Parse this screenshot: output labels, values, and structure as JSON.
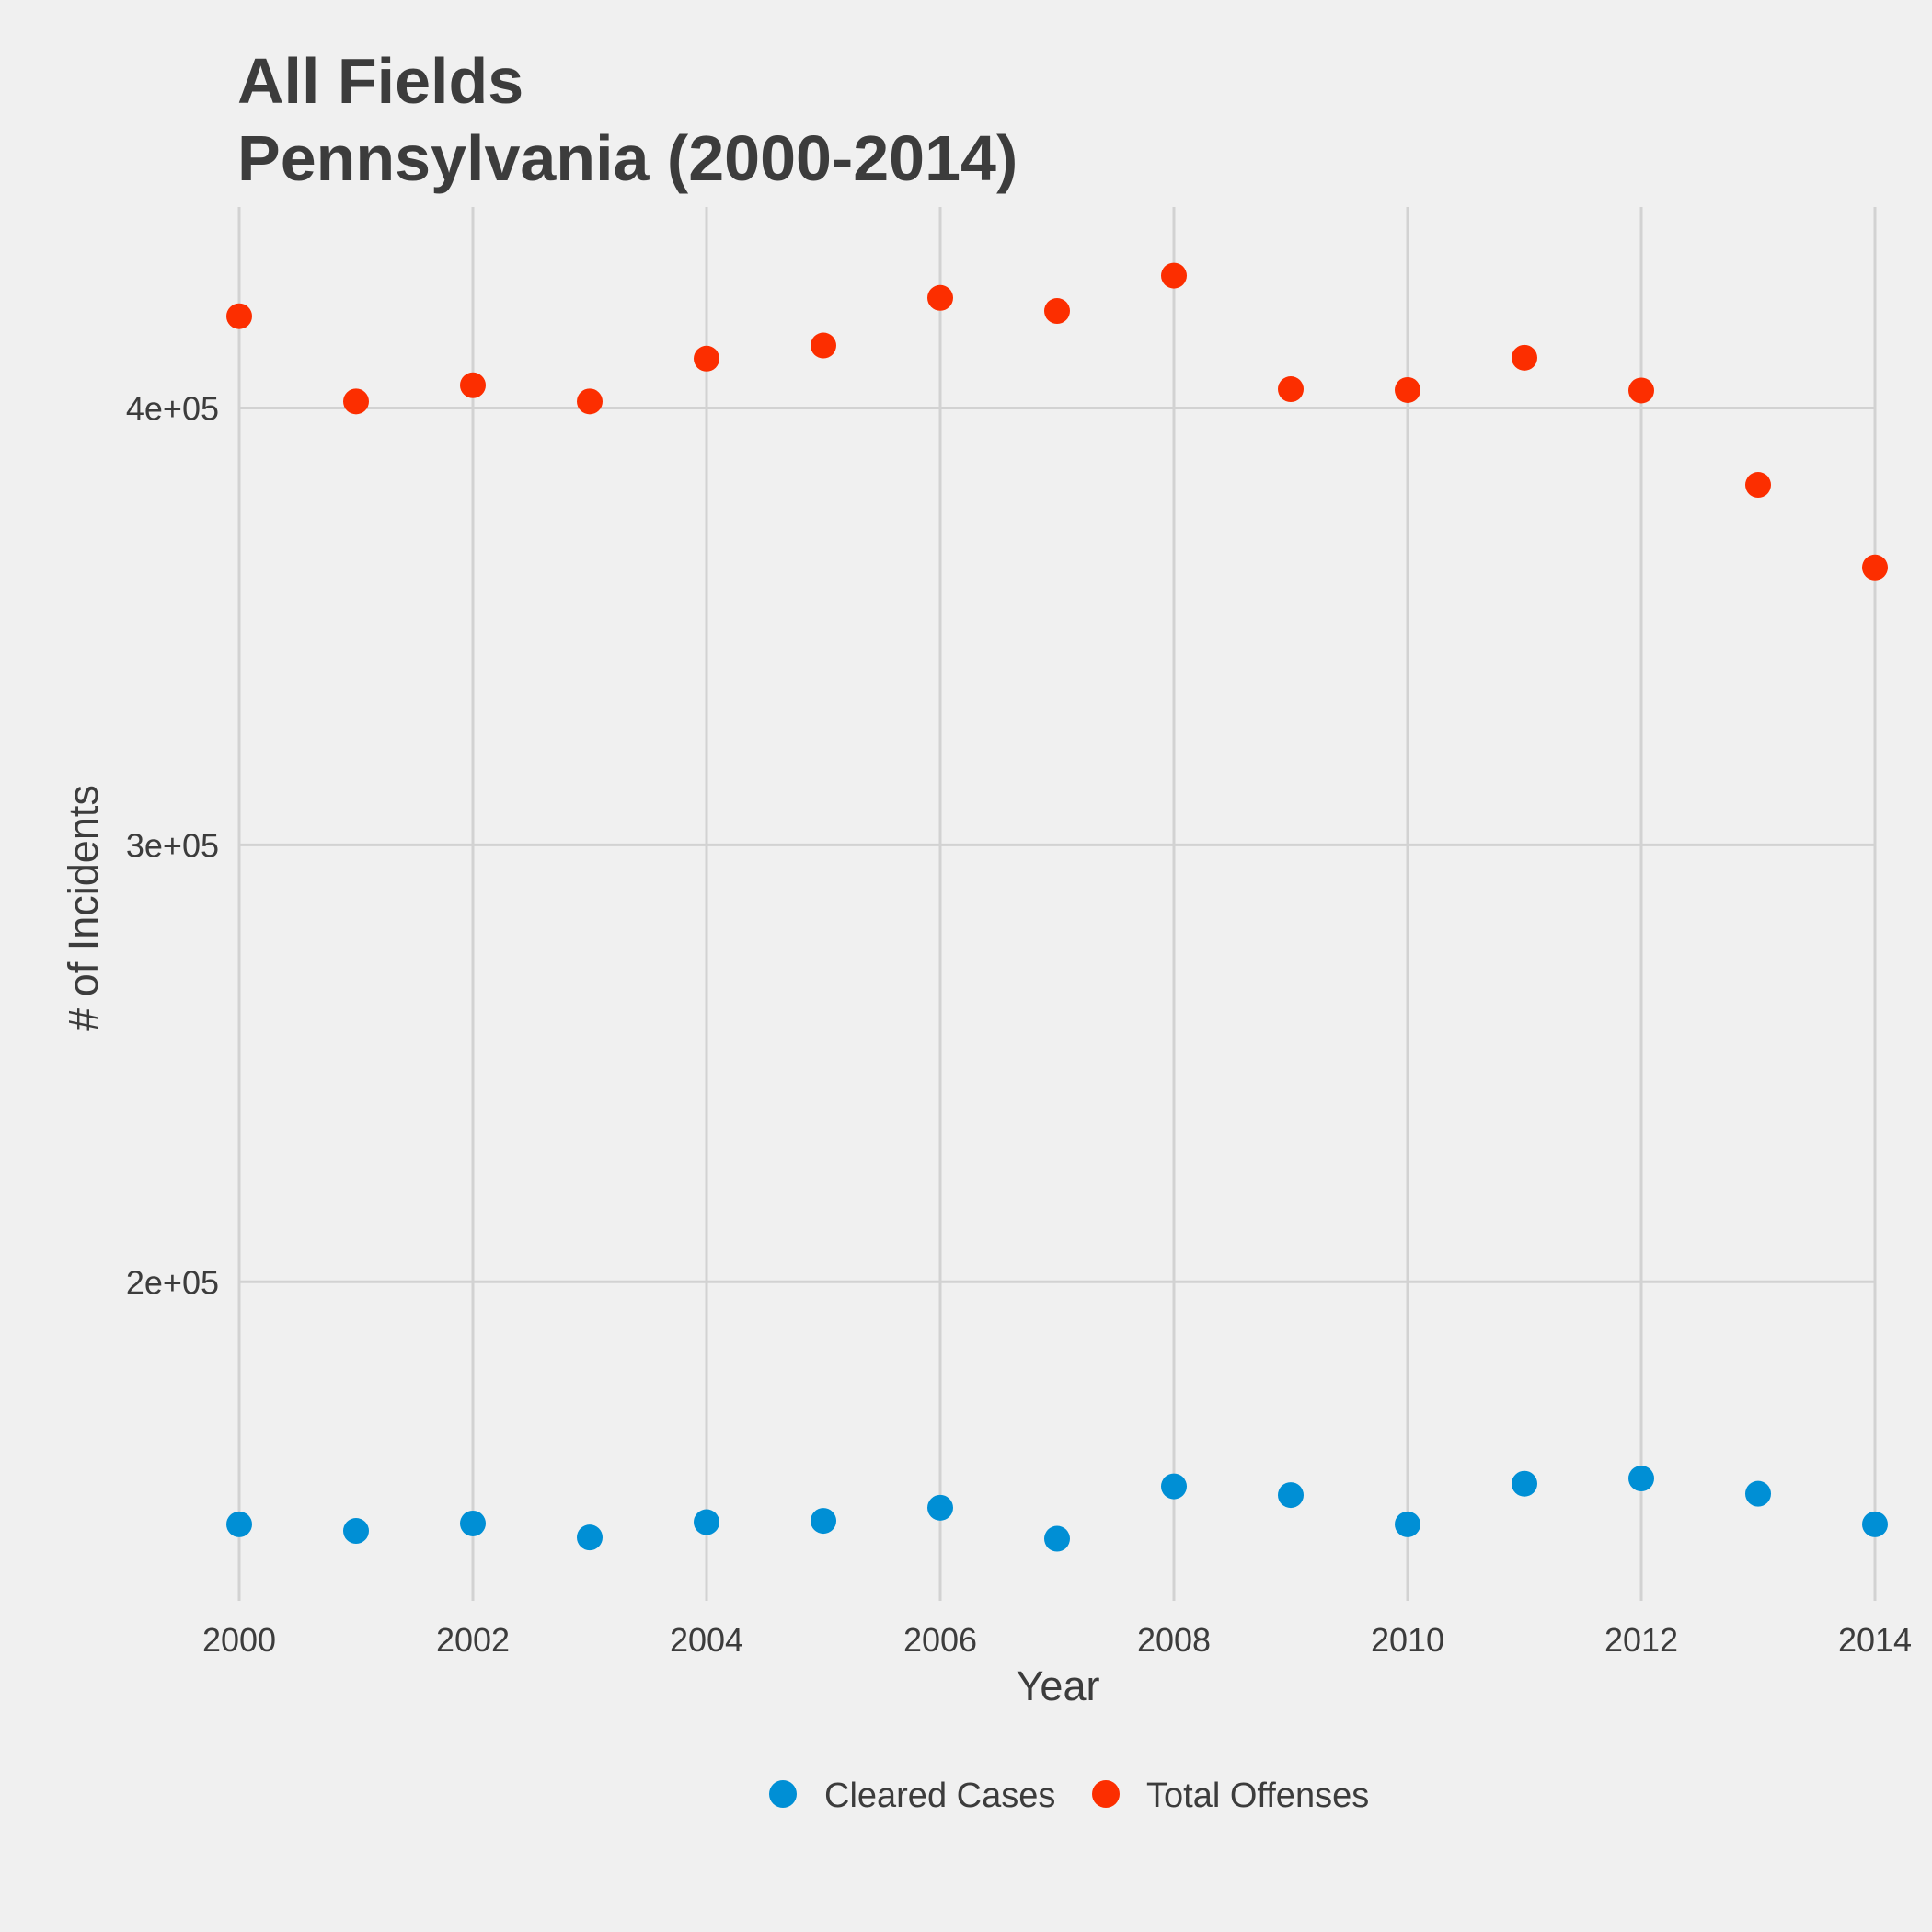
{
  "chart_data": {
    "type": "scatter",
    "title": "All Fields",
    "subtitle": "Pennsylvania (2000-2014)",
    "xlabel": "Year",
    "ylabel": "# of Incidents",
    "xlim": [
      2000,
      2014
    ],
    "ylim": [
      127000,
      446000
    ],
    "x_ticks": [
      2000,
      2002,
      2004,
      2006,
      2008,
      2010,
      2012,
      2014
    ],
    "x_tick_labels": [
      "2000",
      "2002",
      "2004",
      "2006",
      "2008",
      "2010",
      "2012",
      "2014"
    ],
    "y_ticks": [
      200000,
      300000,
      400000
    ],
    "y_tick_labels": [
      "2e+05",
      "3e+05",
      "4e+05"
    ],
    "x": [
      2000,
      2001,
      2002,
      2003,
      2004,
      2005,
      2006,
      2007,
      2008,
      2009,
      2010,
      2011,
      2012,
      2013,
      2014
    ],
    "series": [
      {
        "name": "Cleared Cases",
        "color": "#008fd5",
        "values": [
          144500,
          143000,
          144700,
          141500,
          145000,
          145300,
          148300,
          141200,
          153200,
          151200,
          144500,
          153800,
          155000,
          151500,
          144500
        ]
      },
      {
        "name": "Total Offenses",
        "color": "#fc2e00",
        "values": [
          421000,
          401500,
          405200,
          401500,
          411300,
          414300,
          425200,
          422200,
          430300,
          404300,
          404100,
          411500,
          404000,
          382400,
          363500
        ]
      }
    ],
    "grid": true,
    "legend_position": "bottom"
  }
}
